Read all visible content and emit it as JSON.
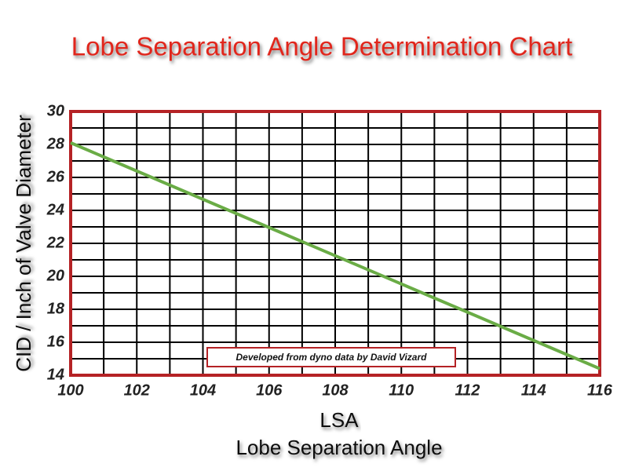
{
  "chart_data": {
    "type": "line",
    "title": "Lobe Separation Angle Determination Chart",
    "xlabel": "LSA",
    "xlabel_sub": "Lobe Separation Angle",
    "ylabel": "CID / Inch of Valve Diameter",
    "annotation": "Developed from dyno data by David Vizard",
    "x": [
      100,
      116
    ],
    "values": [
      28.1,
      14.4
    ],
    "color": "#6aac46",
    "xlim": [
      100,
      116
    ],
    "xticks": [
      100,
      102,
      104,
      106,
      108,
      110,
      112,
      114,
      116
    ],
    "xminor": [
      101,
      103,
      105,
      107,
      109,
      111,
      113,
      115
    ],
    "ylim": [
      14,
      30
    ],
    "yticks": [
      14,
      16,
      18,
      20,
      22,
      24,
      26,
      28,
      30
    ],
    "yminor": [
      15,
      17,
      19,
      21,
      23,
      25,
      27,
      29
    ],
    "grid": true,
    "grid_color": "#000000",
    "frame_color": "#b52225",
    "title_color": "#e0261c"
  }
}
